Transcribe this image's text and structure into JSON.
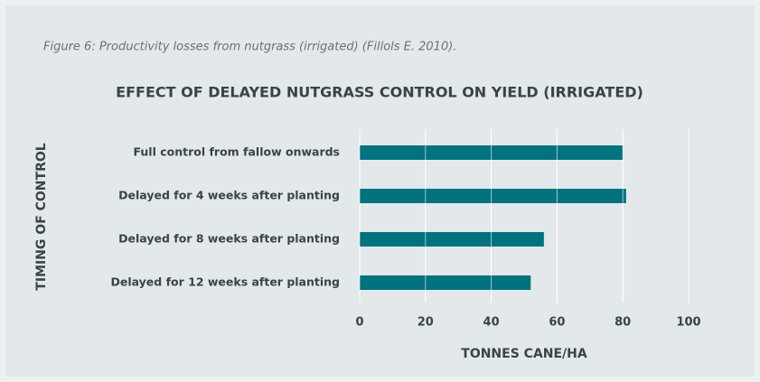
{
  "caption": "Figure 6: Productivity losses from nutgrass (irrigated) (Fillols E. 2010).",
  "chart_data": {
    "type": "hbar",
    "title": "EFFECT OF DELAYED NUTGRASS CONTROL ON YIELD (IRRIGATED)",
    "x_label": "TONNES CANE/HA",
    "y_label": "TIMING OF CONTROL",
    "categories": [
      "Full control from fallow onwards",
      "Delayed for 4 weeks after planting",
      "Delayed for 8 weeks after planting",
      "Delayed for 12 weeks after planting"
    ],
    "values": [
      80,
      81,
      56,
      52
    ],
    "color": "#00737f",
    "xlim": [
      0,
      100
    ],
    "xticks": [
      0,
      20,
      40,
      60,
      80,
      100
    ],
    "grid": true
  }
}
